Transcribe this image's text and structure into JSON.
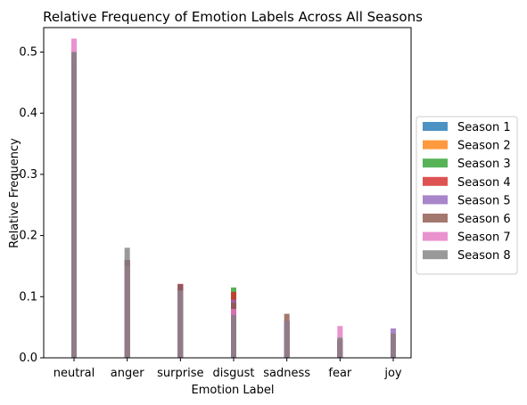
{
  "chart_data": {
    "type": "bar",
    "title": "Relative Frequency of Emotion Labels Across All Seasons",
    "xlabel": "Emotion Label",
    "ylabel": "Relative Frequency",
    "categories": [
      "neutral",
      "anger",
      "surprise",
      "disgust",
      "sadness",
      "fear",
      "joy"
    ],
    "ylim": [
      0,
      0.54
    ],
    "yticks": [
      0.0,
      0.1,
      0.2,
      0.3,
      0.4,
      0.5
    ],
    "ytick_labels": [
      "0.0",
      "0.1",
      "0.2",
      "0.3",
      "0.4",
      "0.5"
    ],
    "legend_position": "center-right, outside plot",
    "bar_alpha": 0.8,
    "series": [
      {
        "name": "Season 1",
        "color": "#1f77b4",
        "values": [
          0.5,
          0.16,
          0.12,
          0.06,
          0.06,
          0.03,
          0.04
        ]
      },
      {
        "name": "Season 2",
        "color": "#ff7f0e",
        "values": [
          0.5,
          0.16,
          0.12,
          0.07,
          0.06,
          0.03,
          0.04
        ]
      },
      {
        "name": "Season 3",
        "color": "#2ca02c",
        "values": [
          0.49,
          0.15,
          0.11,
          0.115,
          0.06,
          0.03,
          0.04
        ]
      },
      {
        "name": "Season 4",
        "color": "#d62728",
        "values": [
          0.49,
          0.16,
          0.121,
          0.108,
          0.06,
          0.03,
          0.04
        ]
      },
      {
        "name": "Season 5",
        "color": "#9467bd",
        "values": [
          0.49,
          0.16,
          0.12,
          0.095,
          0.06,
          0.03,
          0.048
        ]
      },
      {
        "name": "Season 6",
        "color": "#8c564b",
        "values": [
          0.5,
          0.16,
          0.12,
          0.09,
          0.072,
          0.03,
          0.04
        ]
      },
      {
        "name": "Season 7",
        "color": "#e377c2",
        "values": [
          0.522,
          0.15,
          0.11,
          0.08,
          0.06,
          0.052,
          0.04
        ]
      },
      {
        "name": "Season 8",
        "color": "#7f7f7f",
        "values": [
          0.5,
          0.18,
          0.11,
          0.07,
          0.06,
          0.033,
          0.04
        ]
      }
    ]
  }
}
